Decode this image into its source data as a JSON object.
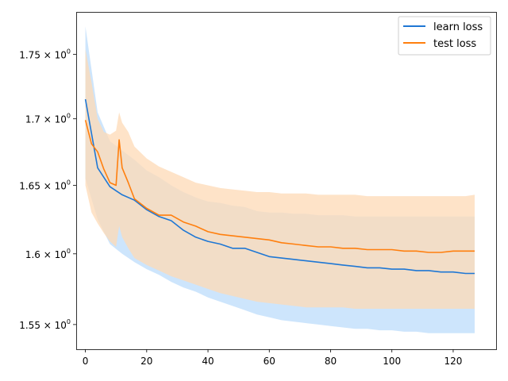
{
  "chart_data": {
    "type": "line",
    "title": "",
    "xlabel": "",
    "ylabel": "",
    "xlim": [
      -3,
      134
    ],
    "ylim": [
      1.5329,
      1.7836
    ],
    "yscale": "log",
    "grid": false,
    "legend_position": "top-right",
    "x_ticks": [
      {
        "value": 0,
        "label": "0"
      },
      {
        "value": 20,
        "label": "20"
      },
      {
        "value": 40,
        "label": "40"
      },
      {
        "value": 60,
        "label": "60"
      },
      {
        "value": 80,
        "label": "80"
      },
      {
        "value": 100,
        "label": "100"
      },
      {
        "value": 120,
        "label": "120"
      }
    ],
    "y_ticks": [
      {
        "value": 1.55,
        "mantissa": "1.55",
        "times": "×",
        "base": "10",
        "exp": "0"
      },
      {
        "value": 1.6,
        "mantissa": "1.6",
        "times": "×",
        "base": "10",
        "exp": "0"
      },
      {
        "value": 1.65,
        "mantissa": "1.65",
        "times": "×",
        "base": "10",
        "exp": "0"
      },
      {
        "value": 1.7,
        "mantissa": "1.7",
        "times": "×",
        "base": "10",
        "exp": "0"
      },
      {
        "value": 1.75,
        "mantissa": "1.75",
        "times": "×",
        "base": "10",
        "exp": "0"
      }
    ],
    "series": [
      {
        "name": "learn loss",
        "color": "#1f77d4",
        "band_color": "#bcdcfb",
        "x": [
          0,
          4,
          8,
          12,
          16,
          20,
          24,
          28,
          32,
          36,
          40,
          44,
          48,
          52,
          56,
          60,
          64,
          68,
          72,
          76,
          80,
          84,
          88,
          92,
          96,
          100,
          104,
          108,
          112,
          116,
          120,
          124,
          127
        ],
        "values": [
          1.715,
          1.663,
          1.649,
          1.643,
          1.639,
          1.632,
          1.627,
          1.624,
          1.617,
          1.612,
          1.609,
          1.607,
          1.604,
          1.604,
          1.601,
          1.598,
          1.597,
          1.596,
          1.595,
          1.594,
          1.593,
          1.592,
          1.591,
          1.59,
          1.59,
          1.589,
          1.589,
          1.588,
          1.588,
          1.587,
          1.587,
          1.586,
          1.586
        ],
        "upper": [
          1.772,
          1.705,
          1.683,
          1.676,
          1.669,
          1.661,
          1.656,
          1.65,
          1.645,
          1.641,
          1.638,
          1.637,
          1.635,
          1.634,
          1.631,
          1.63,
          1.63,
          1.629,
          1.629,
          1.628,
          1.628,
          1.628,
          1.627,
          1.627,
          1.627,
          1.627,
          1.627,
          1.627,
          1.627,
          1.627,
          1.627,
          1.627,
          1.627
        ],
        "lower": [
          1.655,
          1.625,
          1.607,
          1.6,
          1.594,
          1.589,
          1.585,
          1.58,
          1.576,
          1.573,
          1.569,
          1.566,
          1.563,
          1.56,
          1.557,
          1.555,
          1.553,
          1.552,
          1.551,
          1.55,
          1.549,
          1.548,
          1.547,
          1.547,
          1.546,
          1.546,
          1.545,
          1.545,
          1.544,
          1.544,
          1.544,
          1.544,
          1.544
        ]
      },
      {
        "name": "test loss",
        "color": "#ff7f0e",
        "band_color": "#fdd9b6",
        "x": [
          0,
          2,
          4,
          6,
          8,
          10,
          11,
          12,
          14,
          16,
          20,
          24,
          28,
          32,
          36,
          40,
          44,
          48,
          52,
          56,
          60,
          64,
          68,
          72,
          76,
          80,
          84,
          88,
          92,
          96,
          100,
          104,
          108,
          112,
          116,
          120,
          124,
          127
        ],
        "values": [
          1.699,
          1.681,
          1.675,
          1.662,
          1.652,
          1.65,
          1.684,
          1.663,
          1.652,
          1.64,
          1.633,
          1.628,
          1.628,
          1.623,
          1.62,
          1.616,
          1.614,
          1.613,
          1.612,
          1.611,
          1.61,
          1.608,
          1.607,
          1.606,
          1.605,
          1.605,
          1.604,
          1.604,
          1.603,
          1.603,
          1.603,
          1.602,
          1.602,
          1.601,
          1.601,
          1.602,
          1.602,
          1.602
        ],
        "upper": [
          1.754,
          1.728,
          1.7,
          1.69,
          1.688,
          1.691,
          1.705,
          1.697,
          1.69,
          1.679,
          1.67,
          1.664,
          1.66,
          1.656,
          1.652,
          1.65,
          1.648,
          1.647,
          1.646,
          1.645,
          1.645,
          1.644,
          1.644,
          1.644,
          1.643,
          1.643,
          1.643,
          1.643,
          1.642,
          1.642,
          1.642,
          1.642,
          1.642,
          1.642,
          1.642,
          1.642,
          1.642,
          1.643
        ],
        "lower": [
          1.65,
          1.63,
          1.622,
          1.615,
          1.609,
          1.605,
          1.62,
          1.612,
          1.604,
          1.597,
          1.592,
          1.588,
          1.584,
          1.581,
          1.578,
          1.575,
          1.572,
          1.57,
          1.568,
          1.566,
          1.565,
          1.564,
          1.563,
          1.562,
          1.562,
          1.562,
          1.562,
          1.561,
          1.561,
          1.561,
          1.561,
          1.561,
          1.561,
          1.561,
          1.561,
          1.561,
          1.561,
          1.561
        ]
      }
    ]
  }
}
